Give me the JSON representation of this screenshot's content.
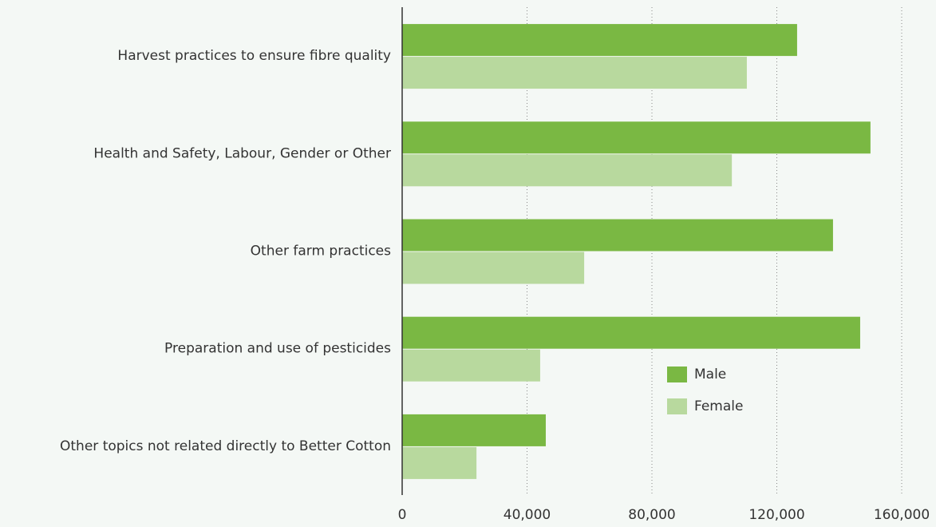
{
  "chart_data": {
    "type": "barh",
    "categories": [
      "Harvest practices to ensure fibre quality",
      "Health and Safety, Labour, Gender or Other",
      "Other farm practices",
      "Preparation and use of pesticides",
      "Other topics not related directly to Better Cotton"
    ],
    "series": [
      {
        "name": "Male",
        "color": "#7ab843",
        "values": [
          126500,
          150000,
          138000,
          146700,
          46000
        ]
      },
      {
        "name": "Female",
        "color": "#b8d99e",
        "values": [
          110400,
          105600,
          58300,
          44200,
          23800
        ]
      }
    ],
    "xlim": [
      0,
      160000
    ],
    "xticks": [
      0,
      {
        "value": 40000,
        "label": "40,000"
      },
      {
        "value": 80000,
        "label": "80,000"
      },
      {
        "value": 120000,
        "label": "120,000"
      },
      {
        "value": 160000,
        "label": "160,000"
      }
    ],
    "grid": true,
    "legend": "lower right"
  }
}
